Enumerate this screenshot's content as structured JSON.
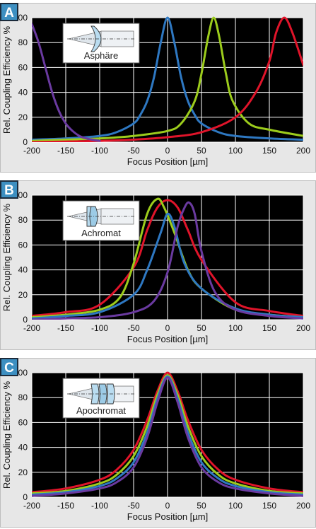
{
  "panels": [
    {
      "label": "A",
      "lens_label": "Asphäre"
    },
    {
      "label": "B",
      "lens_label": "Achromat"
    },
    {
      "label": "C",
      "lens_label": "Apochromat"
    }
  ],
  "colors": {
    "blue": "#2e78c2",
    "green": "#9ccc1c",
    "red": "#e0142a",
    "purple": "#6a3aa0",
    "plot_bg": "#000000",
    "grid": "#ffffff"
  },
  "chart_data": [
    {
      "type": "line",
      "xlabel": "Focus Position [µm]",
      "ylabel": "Rel. Coupling Efficiency %",
      "xlim": [
        -200,
        200
      ],
      "ylim": [
        0,
        100
      ],
      "xticks": [
        -200,
        -150,
        -100,
        -50,
        0,
        50,
        100,
        150,
        200
      ],
      "yticks": [
        0,
        20,
        40,
        60,
        80,
        100
      ],
      "grid": true,
      "series": [
        {
          "color": "blue",
          "x": [
            -200,
            -150,
            -100,
            -75,
            -50,
            -40,
            -30,
            -20,
            -10,
            0,
            10,
            20,
            30,
            40,
            50,
            75,
            100,
            150,
            200
          ],
          "y": [
            2,
            3,
            5,
            8,
            15,
            22,
            33,
            52,
            80,
            100,
            80,
            52,
            33,
            22,
            15,
            8,
            5,
            3,
            2
          ]
        },
        {
          "color": "green",
          "x": [
            -200,
            -150,
            -100,
            -50,
            0,
            20,
            40,
            50,
            60,
            68,
            76,
            86,
            96,
            120,
            150,
            200
          ],
          "y": [
            1,
            2,
            3,
            5,
            9,
            15,
            33,
            55,
            85,
            100,
            85,
            55,
            33,
            15,
            10,
            5
          ]
        },
        {
          "color": "red",
          "x": [
            -200,
            -100,
            -50,
            0,
            50,
            100,
            130,
            150,
            160,
            172,
            184,
            200
          ],
          "y": [
            0,
            1,
            2,
            4,
            8,
            20,
            40,
            65,
            88,
            100,
            88,
            62
          ]
        },
        {
          "color": "purple",
          "x": [
            -200,
            -190,
            -180,
            -170,
            -160,
            -150,
            -140,
            -130,
            -120,
            -100
          ],
          "y": [
            95,
            80,
            60,
            40,
            25,
            15,
            9,
            5,
            3,
            1
          ]
        }
      ]
    },
    {
      "type": "line",
      "xlabel": "Focus Position [µm]",
      "ylabel": "Rel. Coupling Efficiency %",
      "xlim": [
        -200,
        200
      ],
      "ylim": [
        0,
        100
      ],
      "xticks": [
        -200,
        -150,
        -100,
        -50,
        0,
        50,
        100,
        150,
        200
      ],
      "yticks": [
        0,
        20,
        40,
        60,
        80,
        100
      ],
      "grid": true,
      "series": [
        {
          "color": "red",
          "x": [
            -200,
            -150,
            -100,
            -50,
            -30,
            -15,
            0,
            15,
            30,
            50,
            100,
            150,
            200
          ],
          "y": [
            3,
            6,
            12,
            42,
            72,
            90,
            96,
            90,
            72,
            48,
            14,
            7,
            3
          ]
        },
        {
          "color": "green",
          "x": [
            -200,
            -150,
            -100,
            -70,
            -50,
            -30,
            -15,
            -5,
            10,
            30,
            50,
            100,
            150,
            200
          ],
          "y": [
            2,
            4,
            8,
            18,
            45,
            85,
            97,
            90,
            70,
            40,
            25,
            8,
            4,
            2
          ]
        },
        {
          "color": "blue",
          "x": [
            -200,
            -150,
            -100,
            -50,
            -30,
            -10,
            0,
            10,
            25,
            50,
            100,
            150,
            200
          ],
          "y": [
            1,
            3,
            6,
            20,
            40,
            70,
            85,
            75,
            45,
            25,
            9,
            4,
            2
          ]
        },
        {
          "color": "purple",
          "x": [
            -200,
            -150,
            -100,
            -50,
            -20,
            0,
            15,
            25,
            32,
            40,
            50,
            70,
            100,
            150,
            200
          ],
          "y": [
            0,
            1,
            2,
            6,
            15,
            38,
            75,
            90,
            94,
            85,
            55,
            22,
            8,
            3,
            1
          ]
        }
      ]
    },
    {
      "type": "line",
      "xlabel": "Focus Position [µm]",
      "ylabel": "Rel. Coupling Efficiency %",
      "xlim": [
        -200,
        200
      ],
      "ylim": [
        0,
        100
      ],
      "xticks": [
        -200,
        -150,
        -100,
        -50,
        0,
        50,
        100,
        150,
        200
      ],
      "yticks": [
        0,
        20,
        40,
        60,
        80,
        100
      ],
      "grid": true,
      "series": [
        {
          "color": "red",
          "x": [
            -200,
            -150,
            -100,
            -75,
            -50,
            -30,
            -15,
            0,
            15,
            30,
            50,
            75,
            100,
            150,
            200
          ],
          "y": [
            4,
            7,
            14,
            22,
            38,
            62,
            85,
            100,
            85,
            62,
            38,
            22,
            14,
            7,
            4
          ]
        },
        {
          "color": "green",
          "x": [
            -200,
            -150,
            -100,
            -75,
            -50,
            -30,
            -15,
            0,
            15,
            30,
            50,
            75,
            100,
            150,
            200
          ],
          "y": [
            3,
            5,
            11,
            18,
            33,
            57,
            82,
            98,
            82,
            57,
            33,
            18,
            11,
            5,
            3
          ]
        },
        {
          "color": "blue",
          "x": [
            -200,
            -150,
            -100,
            -75,
            -50,
            -30,
            -15,
            0,
            15,
            30,
            50,
            75,
            100,
            150,
            200
          ],
          "y": [
            2,
            4,
            9,
            15,
            28,
            52,
            79,
            97,
            79,
            52,
            28,
            15,
            9,
            4,
            2
          ]
        },
        {
          "color": "purple",
          "x": [
            -200,
            -150,
            -100,
            -75,
            -50,
            -30,
            -15,
            0,
            15,
            30,
            50,
            75,
            100,
            150,
            200
          ],
          "y": [
            1,
            3,
            7,
            12,
            24,
            48,
            76,
            96,
            76,
            48,
            24,
            12,
            7,
            3,
            1
          ]
        }
      ]
    }
  ]
}
